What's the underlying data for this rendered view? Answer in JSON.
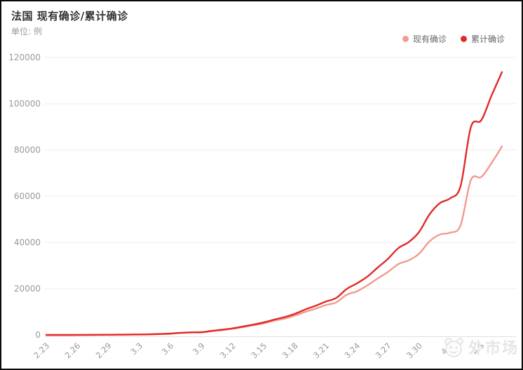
{
  "header": {
    "title": "法国 现有确诊/累计确诊",
    "subtitle": "单位: 例"
  },
  "legend": {
    "items": [
      {
        "label": "现有确诊",
        "color": "#f29a8d"
      },
      {
        "label": "累计确诊",
        "color": "#e02a28"
      }
    ]
  },
  "watermark": {
    "text": "外市场",
    "logo": "cartoon-face-logo"
  },
  "colors": {
    "current_line": "#f29a8d",
    "cumulative_line": "#e02a28",
    "grid_line": "#eeeeee",
    "axis_line": "#e0e0e0",
    "tick_label": "#999999",
    "title_text": "#333333",
    "legend_text": "#666666",
    "card_border": "#0a0a0a",
    "background": "#ffffff"
  },
  "chart_data": {
    "type": "line",
    "title": "法国 现有确诊/累计确诊",
    "unit_label": "单位: 例",
    "xlabel": "",
    "ylabel": "例",
    "ylim": [
      0,
      120000
    ],
    "y_tick_step": 20000,
    "y_tick_labels": [
      "0",
      "20000",
      "40000",
      "60000",
      "80000",
      "100000",
      "120000"
    ],
    "grid": true,
    "smooth": true,
    "legend_position": "top-right",
    "x_label_interval": 3,
    "x_label_rotate": 45,
    "visible_x_labels": [
      "2.23",
      "2.26",
      "2.29",
      "3.3",
      "3.6",
      "3.9",
      "3.12",
      "3.15",
      "3.18",
      "3.21",
      "3.24",
      "3.27",
      "3.30",
      "4.2",
      "4.5"
    ],
    "categories": [
      "2.23",
      "2.24",
      "2.25",
      "2.26",
      "2.27",
      "2.28",
      "2.29",
      "3.1",
      "3.2",
      "3.3",
      "3.4",
      "3.5",
      "3.6",
      "3.7",
      "3.8",
      "3.9",
      "3.10",
      "3.11",
      "3.12",
      "3.13",
      "3.14",
      "3.15",
      "3.16",
      "3.17",
      "3.18",
      "3.19",
      "3.20",
      "3.21",
      "3.22",
      "3.23",
      "3.24",
      "3.25",
      "3.26",
      "3.27",
      "3.28",
      "3.29",
      "3.30",
      "3.31",
      "4.1",
      "4.2",
      "4.3",
      "4.4",
      "4.5",
      "4.6",
      "4.7"
    ],
    "series": [
      {
        "name": "现有确诊",
        "color": "#f29a8d",
        "values": [
          11,
          11,
          12,
          15,
          35,
          53,
          86,
          116,
          176,
          196,
          257,
          390,
          562,
          890,
          1056,
          1116,
          1666,
          2129,
          2666,
          3404,
          4181,
          5036,
          6142,
          7069,
          8349,
          9972,
          11349,
          12905,
          14125,
          17377,
          18870,
          21457,
          24426,
          27279,
          30646,
          32288,
          35154,
          40445,
          43420,
          44246,
          47403,
          67042,
          68332,
          74363,
          81539
        ]
      },
      {
        "name": "累计确诊",
        "color": "#e02a28",
        "values": [
          12,
          12,
          14,
          18,
          38,
          57,
          100,
          130,
          191,
          212,
          285,
          423,
          613,
          949,
          1126,
          1209,
          1784,
          2281,
          2876,
          3661,
          4499,
          5423,
          6633,
          7730,
          9134,
          10995,
          12612,
          14459,
          16018,
          19856,
          22302,
          25233,
          29155,
          32964,
          37575,
          40174,
          44550,
          52128,
          56989,
          59105,
          64338,
          89953,
          92839,
          103573,
          113672
        ]
      }
    ]
  }
}
